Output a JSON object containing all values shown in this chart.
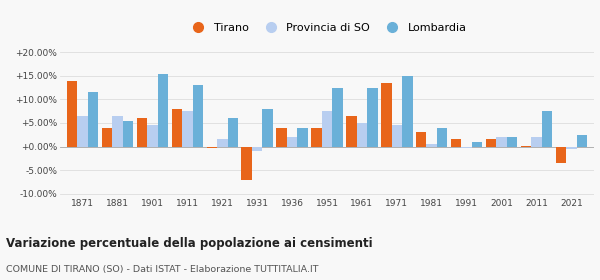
{
  "years": [
    1871,
    1881,
    1901,
    1911,
    1921,
    1931,
    1936,
    1951,
    1961,
    1971,
    1981,
    1991,
    2001,
    2011,
    2021
  ],
  "tirano": [
    14.0,
    4.0,
    6.0,
    8.0,
    -0.3,
    -7.0,
    4.0,
    4.0,
    6.5,
    13.5,
    3.0,
    1.5,
    1.5,
    0.2,
    -3.5
  ],
  "provincia": [
    6.5,
    6.5,
    4.5,
    7.5,
    1.5,
    -1.0,
    2.0,
    7.5,
    5.0,
    4.5,
    0.5,
    -0.3,
    2.0,
    2.0,
    -0.5
  ],
  "lombardia": [
    11.5,
    5.5,
    15.5,
    13.0,
    6.0,
    8.0,
    4.0,
    12.5,
    12.5,
    15.0,
    4.0,
    1.0,
    2.0,
    7.5,
    2.5
  ],
  "color_tirano": "#e8651a",
  "color_provincia": "#b8cef0",
  "color_lombardia": "#6ab0d8",
  "ylim": [
    -10.5,
    21.0
  ],
  "yticks": [
    -10.0,
    -5.0,
    0.0,
    5.0,
    10.0,
    15.0,
    20.0
  ],
  "title": "Variazione percentuale della popolazione ai censimenti",
  "subtitle": "COMUNE DI TIRANO (SO) - Dati ISTAT - Elaborazione TUTTITALIA.IT",
  "legend_labels": [
    "Tirano",
    "Provincia di SO",
    "Lombardia"
  ],
  "bar_width": 0.3,
  "background_color": "#f8f8f8"
}
